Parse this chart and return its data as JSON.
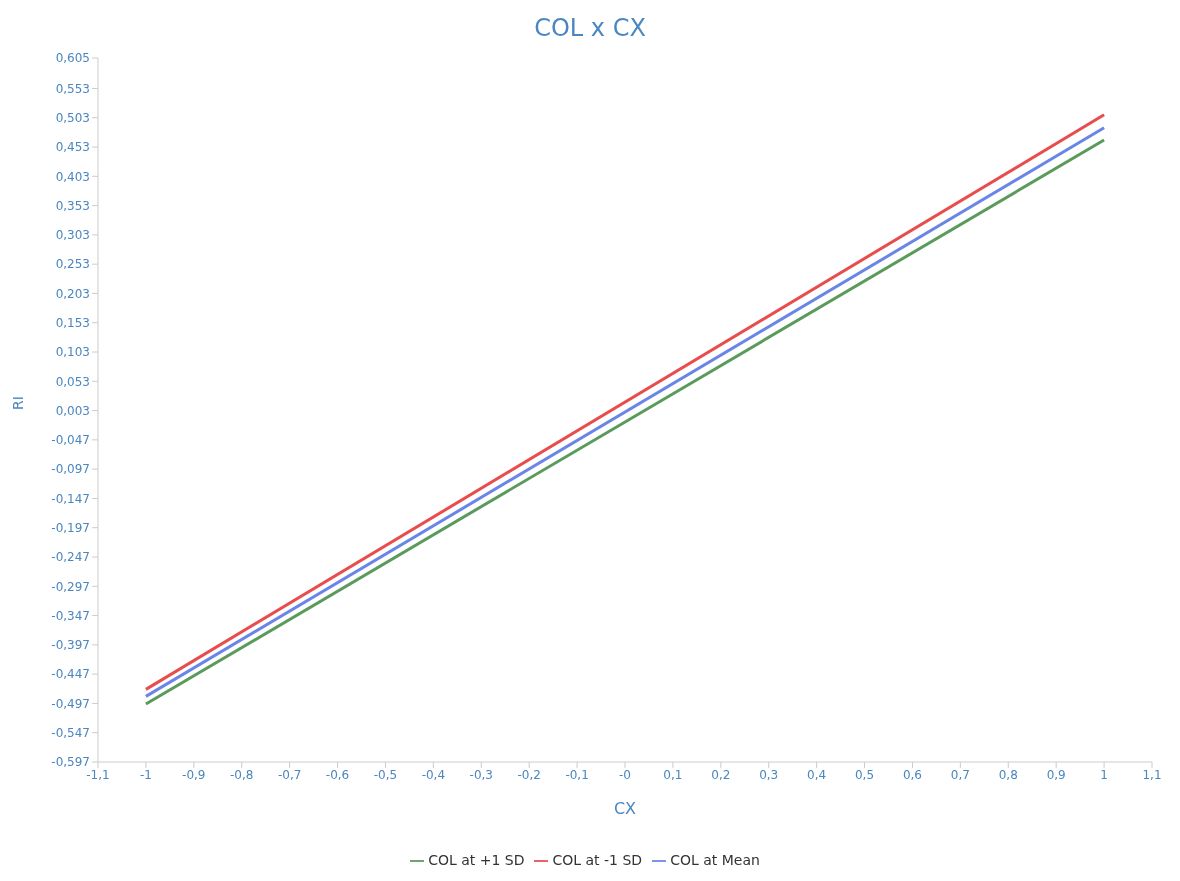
{
  "chart_data": {
    "type": "line",
    "title": "COL x CX",
    "xlabel": "CX",
    "ylabel": "RI",
    "x": [
      -1,
      1
    ],
    "series": [
      {
        "name": "COL at -1 SD",
        "color": "#e84c4c",
        "values": [
          -0.473,
          0.508
        ]
      },
      {
        "name": "COL at Mean",
        "color": "#6a85e8",
        "values": [
          -0.485,
          0.486
        ]
      },
      {
        "name": "COL at +1 SD",
        "color": "#5a9a5a",
        "values": [
          -0.498,
          0.465
        ]
      }
    ],
    "xlim": [
      -1.1,
      1.1
    ],
    "xticks": [
      {
        "value": -1.1,
        "label": "-1,1"
      },
      {
        "value": -1,
        "label": "-1"
      },
      {
        "value": -0.9,
        "label": "-0,9"
      },
      {
        "value": -0.8,
        "label": "-0,8"
      },
      {
        "value": -0.7,
        "label": "-0,7"
      },
      {
        "value": -0.6,
        "label": "-0,6"
      },
      {
        "value": -0.5,
        "label": "-0,5"
      },
      {
        "value": -0.4,
        "label": "-0,4"
      },
      {
        "value": -0.3,
        "label": "-0,3"
      },
      {
        "value": -0.2,
        "label": "-0,2"
      },
      {
        "value": -0.1,
        "label": "-0,1"
      },
      {
        "value": 0,
        "label": "-0"
      },
      {
        "value": 0.1,
        "label": "0,1"
      },
      {
        "value": 0.2,
        "label": "0,2"
      },
      {
        "value": 0.3,
        "label": "0,3"
      },
      {
        "value": 0.4,
        "label": "0,4"
      },
      {
        "value": 0.5,
        "label": "0,5"
      },
      {
        "value": 0.6,
        "label": "0,6"
      },
      {
        "value": 0.7,
        "label": "0,7"
      },
      {
        "value": 0.8,
        "label": "0,8"
      },
      {
        "value": 0.9,
        "label": "0,9"
      },
      {
        "value": 1,
        "label": "1"
      },
      {
        "value": 1.1,
        "label": "1,1"
      }
    ],
    "ylim": [
      -0.597,
      0.605
    ],
    "yticks": [
      {
        "value": -0.597,
        "label": "-0,597"
      },
      {
        "value": -0.547,
        "label": "-0,547"
      },
      {
        "value": -0.497,
        "label": "-0,497"
      },
      {
        "value": -0.447,
        "label": "-0,447"
      },
      {
        "value": -0.397,
        "label": "-0,397"
      },
      {
        "value": -0.347,
        "label": "-0,347"
      },
      {
        "value": -0.297,
        "label": "-0,297"
      },
      {
        "value": -0.247,
        "label": "-0,247"
      },
      {
        "value": -0.197,
        "label": "-0,197"
      },
      {
        "value": -0.147,
        "label": "-0,147"
      },
      {
        "value": -0.097,
        "label": "-0,097"
      },
      {
        "value": -0.047,
        "label": "-0,047"
      },
      {
        "value": 0.003,
        "label": "0,003"
      },
      {
        "value": 0.053,
        "label": "0,053"
      },
      {
        "value": 0.103,
        "label": "0,103"
      },
      {
        "value": 0.153,
        "label": "0,153"
      },
      {
        "value": 0.203,
        "label": "0,203"
      },
      {
        "value": 0.253,
        "label": "0,253"
      },
      {
        "value": 0.303,
        "label": "0,303"
      },
      {
        "value": 0.353,
        "label": "0,353"
      },
      {
        "value": 0.403,
        "label": "0,403"
      },
      {
        "value": 0.453,
        "label": "0,453"
      },
      {
        "value": 0.503,
        "label": "0,503"
      },
      {
        "value": 0.553,
        "label": "0,553"
      },
      {
        "value": 0.605,
        "label": "0,605"
      }
    ],
    "legend": "bottom",
    "grid": false,
    "marker": "none",
    "line_style": "solid"
  }
}
